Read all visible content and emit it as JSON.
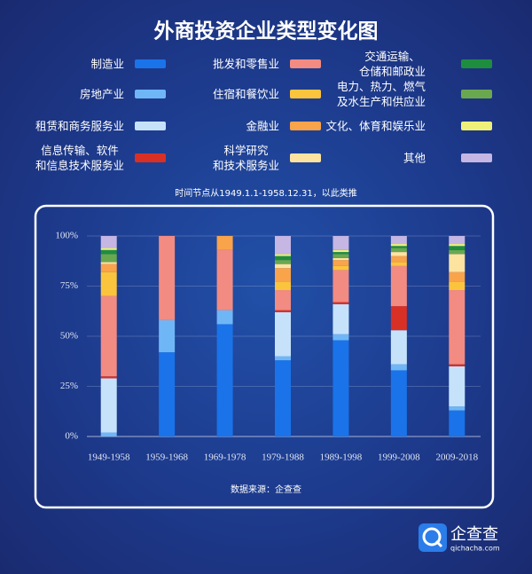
{
  "chart_data": {
    "type": "stacked_bar",
    "title": "外商投资企业类型变化图",
    "note": "时间节点从1949.1.1-1958.12.31，以此类推",
    "source": "数据来源：企查查",
    "categories": [
      "1949-1958",
      "1959-1968",
      "1969-1978",
      "1979-1988",
      "1989-1998",
      "1999-2008",
      "2009-2018"
    ],
    "series": [
      {
        "name": "制造业",
        "color": "#1a73e8",
        "values": [
          0,
          42,
          56,
          38,
          48,
          33,
          13
        ]
      },
      {
        "name": "房地产业",
        "color": "#6fb6f6",
        "values": [
          2,
          16,
          7,
          2,
          3,
          3,
          2
        ]
      },
      {
        "name": "租赁和商务服务业",
        "color": "#c6e2fb",
        "values": [
          27,
          0,
          0,
          22,
          15,
          17,
          20
        ]
      },
      {
        "name": "信息传输、软件\n和信息技术服务业",
        "color": "#d93025",
        "values": [
          1,
          0,
          0,
          1,
          1,
          12,
          1
        ]
      },
      {
        "name": "批发和零售业",
        "color": "#f28b82",
        "values": [
          40,
          42,
          30,
          10,
          16,
          20,
          37
        ]
      },
      {
        "name": "住宿和餐饮业",
        "color": "#fbc43d",
        "values": [
          12,
          0,
          0,
          4,
          2,
          2,
          4
        ]
      },
      {
        "name": "金融业",
        "color": "#f9a34a",
        "values": [
          4,
          0,
          7,
          7,
          3,
          3,
          5
        ]
      },
      {
        "name": "科学研究\n和技术服务业",
        "color": "#fde3a0",
        "values": [
          1,
          0,
          0,
          2,
          1,
          2,
          9
        ]
      },
      {
        "name": "电力、热力、燃气\n及水生产和供应业",
        "color": "#6aa84f",
        "values": [
          4,
          0,
          0,
          2,
          2,
          2,
          2
        ]
      },
      {
        "name": "交通运输、\n仓储和邮政业",
        "color": "#1e8e3e",
        "values": [
          2,
          0,
          0,
          2,
          1,
          1,
          2
        ]
      },
      {
        "name": "文化、体育和娱乐业",
        "color": "#eef07a",
        "values": [
          1,
          0,
          0,
          1,
          1,
          1,
          1
        ]
      },
      {
        "name": "其他",
        "color": "#c5b6e3",
        "values": [
          6,
          0,
          0,
          9,
          7,
          4,
          4
        ]
      }
    ],
    "ylim": [
      0,
      100
    ],
    "yticks": [
      {
        "value": 0,
        "label": "0%"
      },
      {
        "value": 25,
        "label": "25%"
      },
      {
        "value": 50,
        "label": "50%"
      },
      {
        "value": 75,
        "label": "75%"
      },
      {
        "value": 100,
        "label": "100%"
      }
    ],
    "grid": true
  },
  "logo": {
    "name": "企查查",
    "url": "qichacha.com"
  }
}
